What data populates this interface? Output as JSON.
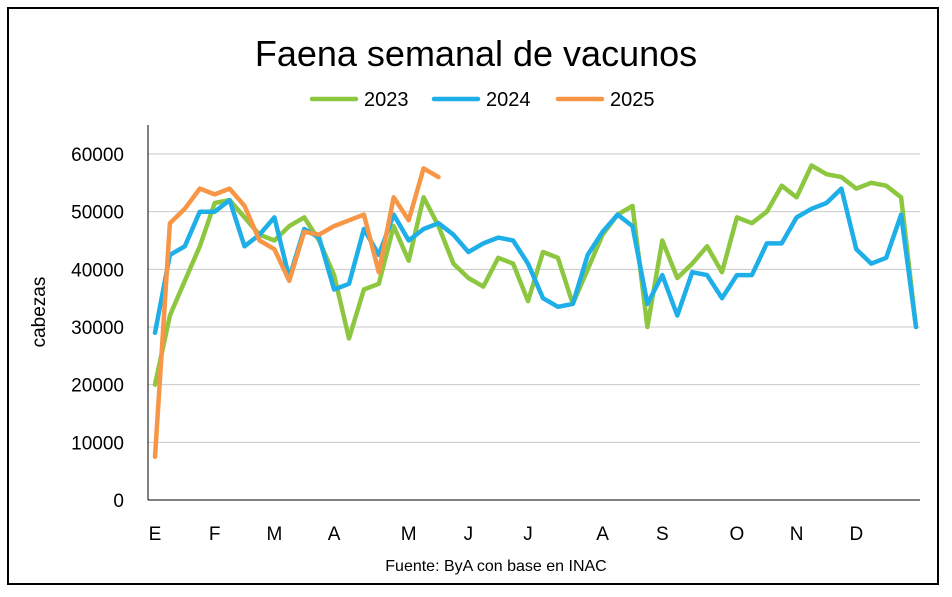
{
  "chart_data": {
    "type": "line",
    "title": "Faena semanal de vacunos",
    "ylabel": "cabezas",
    "xlabel": "",
    "source": "Fuente: ByA con base en INAC",
    "ylim": [
      0,
      60000
    ],
    "yticks": [
      "0",
      "10000",
      "20000",
      "30000",
      "40000",
      "50000",
      "60000"
    ],
    "x_tick_labels": [
      "E",
      "F",
      "M",
      "A",
      "M",
      "J",
      "J",
      "A",
      "S",
      "O",
      "N",
      "D"
    ],
    "x_tick_weeks": [
      1,
      5,
      9,
      13,
      18,
      22,
      26,
      31,
      35,
      40,
      44,
      48
    ],
    "weeks": 52,
    "grid": true,
    "legend_position": "top",
    "series": [
      {
        "name": "2023",
        "color": "#8DC63F",
        "values": [
          20000,
          32000,
          38000,
          44000,
          51500,
          52000,
          49000,
          46000,
          45000,
          47500,
          49000,
          45000,
          39000,
          28000,
          36500,
          37500,
          47500,
          41500,
          52500,
          47500,
          41000,
          38500,
          37000,
          42000,
          41000,
          34500,
          43000,
          42000,
          34000,
          40000,
          46000,
          49500,
          51000,
          30000,
          45000,
          38500,
          41000,
          44000,
          39500,
          49000,
          48000,
          50000,
          54500,
          52500,
          58000,
          56500,
          56000,
          54000,
          55000,
          54500,
          52500,
          30000
        ]
      },
      {
        "name": "2024",
        "color": "#1EAEE8",
        "values": [
          29000,
          42500,
          44000,
          50000,
          50000,
          52000,
          44000,
          46000,
          49000,
          38500,
          47000,
          45500,
          36500,
          37500,
          47000,
          42500,
          49500,
          45000,
          47000,
          48000,
          46000,
          43000,
          44500,
          45500,
          45000,
          41000,
          35000,
          33500,
          34000,
          42500,
          46500,
          49500,
          47500,
          34000,
          39000,
          32000,
          39500,
          39000,
          35000,
          39000,
          39000,
          44500,
          44500,
          49000,
          50500,
          51500,
          54000,
          43500,
          41000,
          42000,
          49500,
          30000
        ]
      },
      {
        "name": "2025",
        "color": "#F79646",
        "values": [
          7500,
          48000,
          50500,
          54000,
          53000,
          54000,
          51000,
          45000,
          43500,
          38000,
          46500,
          46000,
          47500,
          48500,
          49500,
          39500,
          52500,
          48500,
          57500,
          56000
        ]
      }
    ]
  }
}
